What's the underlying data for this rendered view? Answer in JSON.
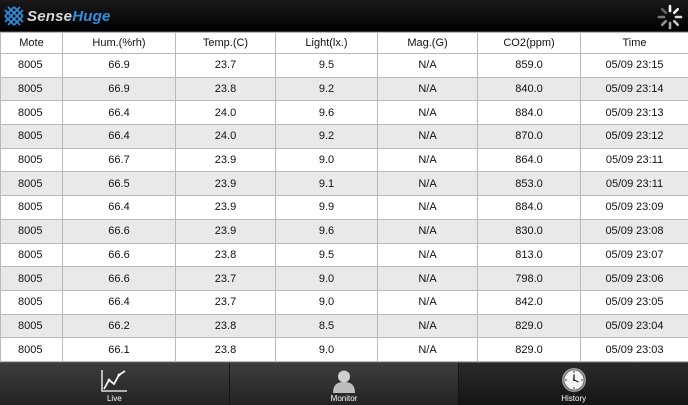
{
  "app": {
    "logo_part1": "Sense",
    "logo_part2": "Huge"
  },
  "table": {
    "headers": [
      "Mote",
      "Hum.(%rh)",
      "Temp.(C)",
      "Light(lx.)",
      "Mag.(G)",
      "CO2(ppm)",
      "Time"
    ],
    "rows": [
      [
        "8005",
        "66.9",
        "23.7",
        "9.5",
        "N/A",
        "859.0",
        "05/09 23:15"
      ],
      [
        "8005",
        "66.9",
        "23.8",
        "9.2",
        "N/A",
        "840.0",
        "05/09 23:14"
      ],
      [
        "8005",
        "66.4",
        "24.0",
        "9.6",
        "N/A",
        "884.0",
        "05/09 23:13"
      ],
      [
        "8005",
        "66.4",
        "24.0",
        "9.2",
        "N/A",
        "870.0",
        "05/09 23:12"
      ],
      [
        "8005",
        "66.7",
        "23.9",
        "9.0",
        "N/A",
        "864.0",
        "05/09 23:11"
      ],
      [
        "8005",
        "66.5",
        "23.9",
        "9.1",
        "N/A",
        "853.0",
        "05/09 23:11"
      ],
      [
        "8005",
        "66.4",
        "23.9",
        "9.9",
        "N/A",
        "884.0",
        "05/09 23:09"
      ],
      [
        "8005",
        "66.6",
        "23.9",
        "9.6",
        "N/A",
        "830.0",
        "05/09 23:08"
      ],
      [
        "8005",
        "66.6",
        "23.8",
        "9.5",
        "N/A",
        "813.0",
        "05/09 23:07"
      ],
      [
        "8005",
        "66.6",
        "23.7",
        "9.0",
        "N/A",
        "798.0",
        "05/09 23:06"
      ],
      [
        "8005",
        "66.4",
        "23.7",
        "9.0",
        "N/A",
        "842.0",
        "05/09 23:05"
      ],
      [
        "8005",
        "66.2",
        "23.8",
        "8.5",
        "N/A",
        "829.0",
        "05/09 23:04"
      ],
      [
        "8005",
        "66.1",
        "23.8",
        "9.0",
        "N/A",
        "829.0",
        "05/09 23:03"
      ]
    ]
  },
  "tabs": [
    {
      "label": "Live",
      "icon": "line-chart-icon"
    },
    {
      "label": "Monitor",
      "icon": "person-icon"
    },
    {
      "label": "History",
      "icon": "clock-icon",
      "active": true
    }
  ],
  "colors": {
    "logo_accent": "#2f8fe0",
    "row_alt": "#e9e9ea",
    "bar_dark": "#000000"
  }
}
